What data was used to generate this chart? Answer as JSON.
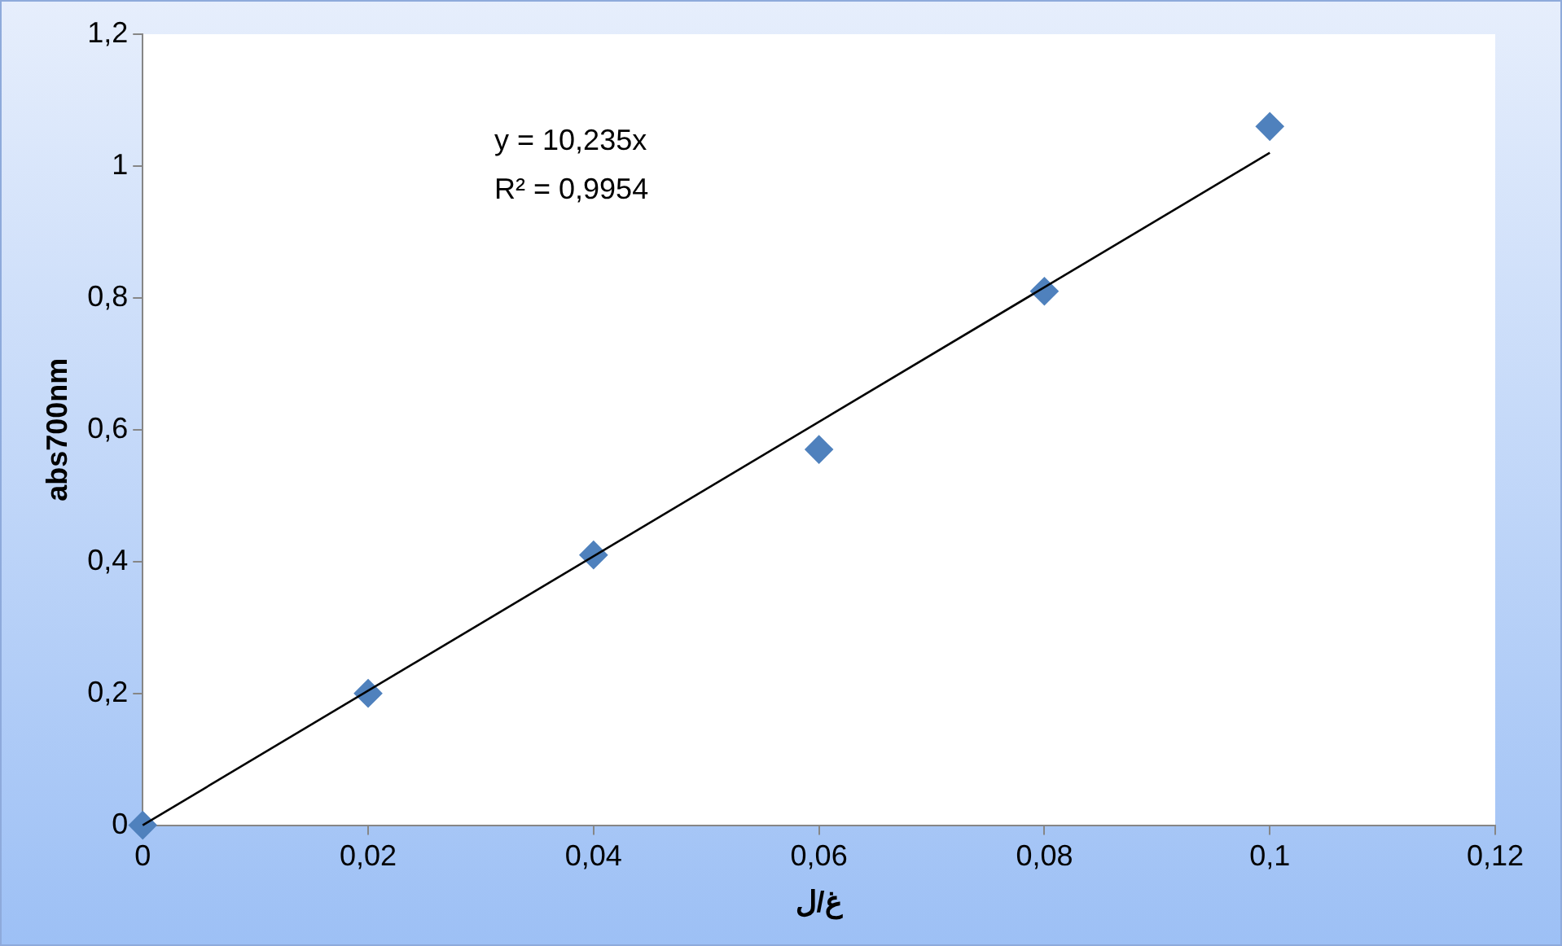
{
  "chart_data": {
    "type": "scatter",
    "xlabel": "غ/ل",
    "ylabel": "abs700nm",
    "annotations": [
      "y = 10,235x",
      "R² = 0,9954"
    ],
    "xlim": [
      0,
      0.12
    ],
    "xticks": [
      0,
      {
        "value": 0.02,
        "label": "0,02"
      },
      {
        "value": 0.04,
        "label": "0,04"
      },
      {
        "value": 0.06,
        "label": "0,06"
      },
      {
        "value": 0.08,
        "label": "0,08"
      },
      {
        "value": 0.1,
        "label": "0,1"
      },
      {
        "value": 0.12,
        "label": "0,12"
      }
    ],
    "ylim": [
      0,
      1.2
    ],
    "yticks": [
      0,
      {
        "value": 0.2,
        "label": "0,2"
      },
      {
        "value": 0.4,
        "label": "0,4"
      },
      {
        "value": 0.6,
        "label": "0,6"
      },
      {
        "value": 0.8,
        "label": "0,8"
      },
      1,
      {
        "value": 1.2,
        "label": "1,2"
      }
    ],
    "grid": false,
    "legend": false,
    "marker": "diamond",
    "series": [
      {
        "type": "scatter",
        "color": "#4f81bd",
        "x": [
          0,
          0.02,
          0.04,
          0.06,
          0.08,
          0.1
        ],
        "values": [
          0,
          0.2,
          0.41,
          0.57,
          0.81,
          1.06
        ]
      },
      {
        "type": "line",
        "color": "#000000",
        "marker": "none",
        "line_style": "solid",
        "x": [
          0,
          0.1
        ],
        "values": [
          0,
          1.02
        ]
      }
    ]
  }
}
